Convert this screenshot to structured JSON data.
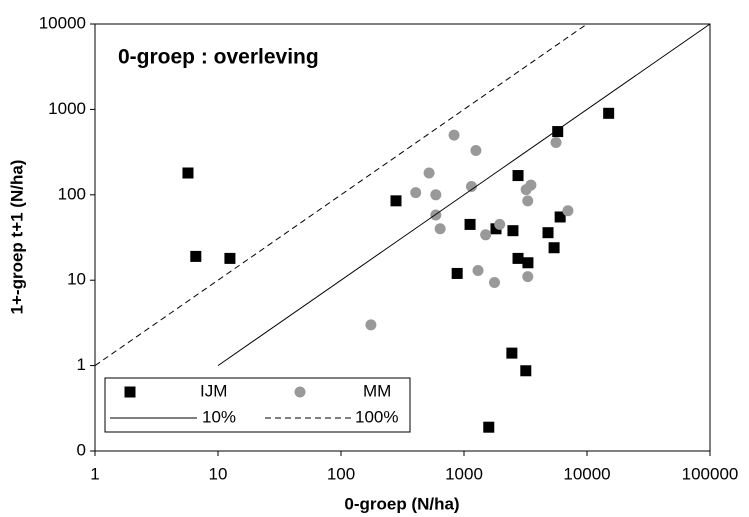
{
  "chart_data": {
    "type": "scatter",
    "title": "0-groep : overleving",
    "x_label": "0-groep (N/ha)",
    "y_label": "1+-groep t+1 (N/ha)",
    "log_x": true,
    "log_y": true,
    "xlim": [
      1,
      100000
    ],
    "xticks": [
      1,
      10,
      100,
      1000,
      10000,
      100000
    ],
    "ylim": [
      0.1,
      10000
    ],
    "yticks": [
      {
        "value": 0.1,
        "label": "0"
      },
      1,
      10,
      100,
      1000,
      10000
    ],
    "legend": "bottom-left",
    "series": [
      {
        "name": "IJM",
        "color": "#000000",
        "marker": "square",
        "x": [
          5.7,
          6.6,
          12.5,
          280,
          880,
          1120,
          1820,
          2750,
          2500,
          2750,
          3310,
          4820,
          5400,
          5780,
          6050,
          15000,
          2450,
          3180,
          1590
        ],
        "values": [
          180,
          19,
          18,
          85,
          12,
          45,
          40,
          168,
          38,
          18,
          16,
          36,
          24,
          550,
          55,
          900,
          1.4,
          0.87,
          0.19
        ]
      },
      {
        "name": "MM",
        "color": "#999999",
        "marker": "circle",
        "x": [
          175,
          405,
          520,
          590,
          590,
          640,
          830,
          1250,
          1150,
          1300,
          1500,
          1770,
          1950,
          3500,
          3200,
          3300,
          3300,
          5600,
          7000
        ],
        "values": [
          3,
          106,
          180,
          100,
          58,
          40,
          500,
          330,
          125,
          13,
          34,
          9.4,
          45,
          130,
          115,
          85,
          11,
          410,
          65
        ]
      },
      {
        "name": "10%",
        "color": "#000000",
        "line": "solid",
        "x": [
          10,
          100000
        ],
        "values": [
          1,
          10000
        ]
      },
      {
        "name": "100%",
        "color": "#000000",
        "line": "dashed",
        "x": [
          1,
          10000
        ],
        "values": [
          1,
          10000
        ]
      }
    ]
  }
}
